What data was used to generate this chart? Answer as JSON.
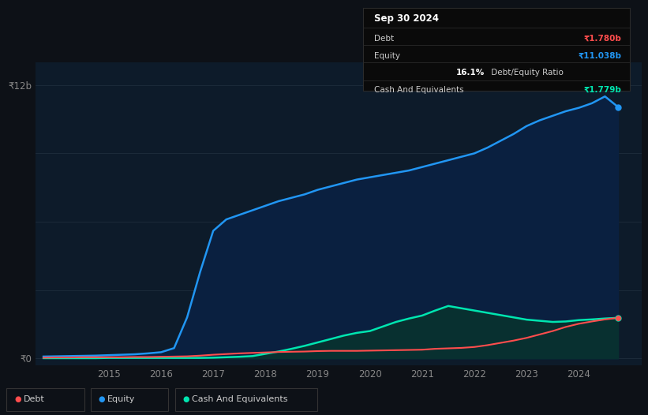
{
  "background_color": "#0d1117",
  "plot_bg_color": "#0d1b2a",
  "ylabel_12b": "₹12b",
  "ylabel_0": "₹0",
  "legend_items": [
    "Debt",
    "Equity",
    "Cash And Equivalents"
  ],
  "legend_colors": [
    "#ff4d4d",
    "#2196f3",
    "#00e5b0"
  ],
  "tooltip": {
    "title": "Sep 30 2024",
    "debt_label": "Debt",
    "debt_value": "₹1.780b",
    "debt_color": "#ff4d4d",
    "equity_label": "Equity",
    "equity_value": "₹11.038b",
    "equity_color": "#2196f3",
    "ratio_bold": "16.1%",
    "ratio_rest": " Debt/Equity Ratio",
    "cash_label": "Cash And Equivalents",
    "cash_value": "₹1.779b",
    "cash_color": "#00e5b0"
  },
  "years": [
    2013.75,
    2014.0,
    2014.25,
    2014.5,
    2014.75,
    2015.0,
    2015.25,
    2015.5,
    2015.75,
    2016.0,
    2016.25,
    2016.5,
    2016.75,
    2017.0,
    2017.25,
    2017.5,
    2017.75,
    2018.0,
    2018.25,
    2018.5,
    2018.75,
    2019.0,
    2019.25,
    2019.5,
    2019.75,
    2020.0,
    2020.25,
    2020.5,
    2020.75,
    2021.0,
    2021.25,
    2021.5,
    2021.75,
    2022.0,
    2022.25,
    2022.5,
    2022.75,
    2023.0,
    2023.25,
    2023.5,
    2023.75,
    2024.0,
    2024.25,
    2024.5,
    2024.75
  ],
  "debt": [
    0.03,
    0.04,
    0.04,
    0.05,
    0.05,
    0.05,
    0.05,
    0.06,
    0.06,
    0.07,
    0.08,
    0.09,
    0.12,
    0.16,
    0.19,
    0.22,
    0.24,
    0.26,
    0.28,
    0.29,
    0.3,
    0.32,
    0.33,
    0.33,
    0.33,
    0.34,
    0.35,
    0.36,
    0.37,
    0.38,
    0.42,
    0.44,
    0.46,
    0.5,
    0.58,
    0.68,
    0.78,
    0.9,
    1.05,
    1.2,
    1.38,
    1.52,
    1.62,
    1.71,
    1.78
  ],
  "equity": [
    0.08,
    0.09,
    0.1,
    0.11,
    0.12,
    0.14,
    0.16,
    0.18,
    0.22,
    0.27,
    0.45,
    1.8,
    3.8,
    5.6,
    6.1,
    6.3,
    6.5,
    6.7,
    6.9,
    7.05,
    7.2,
    7.4,
    7.55,
    7.7,
    7.85,
    7.95,
    8.05,
    8.15,
    8.25,
    8.4,
    8.55,
    8.7,
    8.85,
    9.0,
    9.25,
    9.55,
    9.85,
    10.2,
    10.45,
    10.65,
    10.85,
    11.0,
    11.2,
    11.5,
    11.038
  ],
  "cash": [
    0.01,
    0.01,
    0.01,
    0.01,
    0.01,
    0.02,
    0.02,
    0.02,
    0.02,
    0.02,
    0.02,
    0.02,
    0.02,
    0.03,
    0.05,
    0.07,
    0.1,
    0.2,
    0.3,
    0.42,
    0.55,
    0.7,
    0.85,
    1.0,
    1.12,
    1.2,
    1.4,
    1.6,
    1.75,
    1.88,
    2.1,
    2.3,
    2.2,
    2.1,
    2.0,
    1.9,
    1.8,
    1.7,
    1.65,
    1.6,
    1.62,
    1.68,
    1.71,
    1.75,
    1.779
  ],
  "xlim": [
    2013.6,
    2025.2
  ],
  "ylim": [
    -0.3,
    13.0
  ],
  "grid_color": "#1e2d3d",
  "line_color_debt": "#ff4d4d",
  "line_color_equity": "#2196f3",
  "line_color_cash": "#00e5b0",
  "fill_color_equity": "#0a2040",
  "fill_color_cash": "#083030",
  "fill_color_base": "#0d1b2a"
}
